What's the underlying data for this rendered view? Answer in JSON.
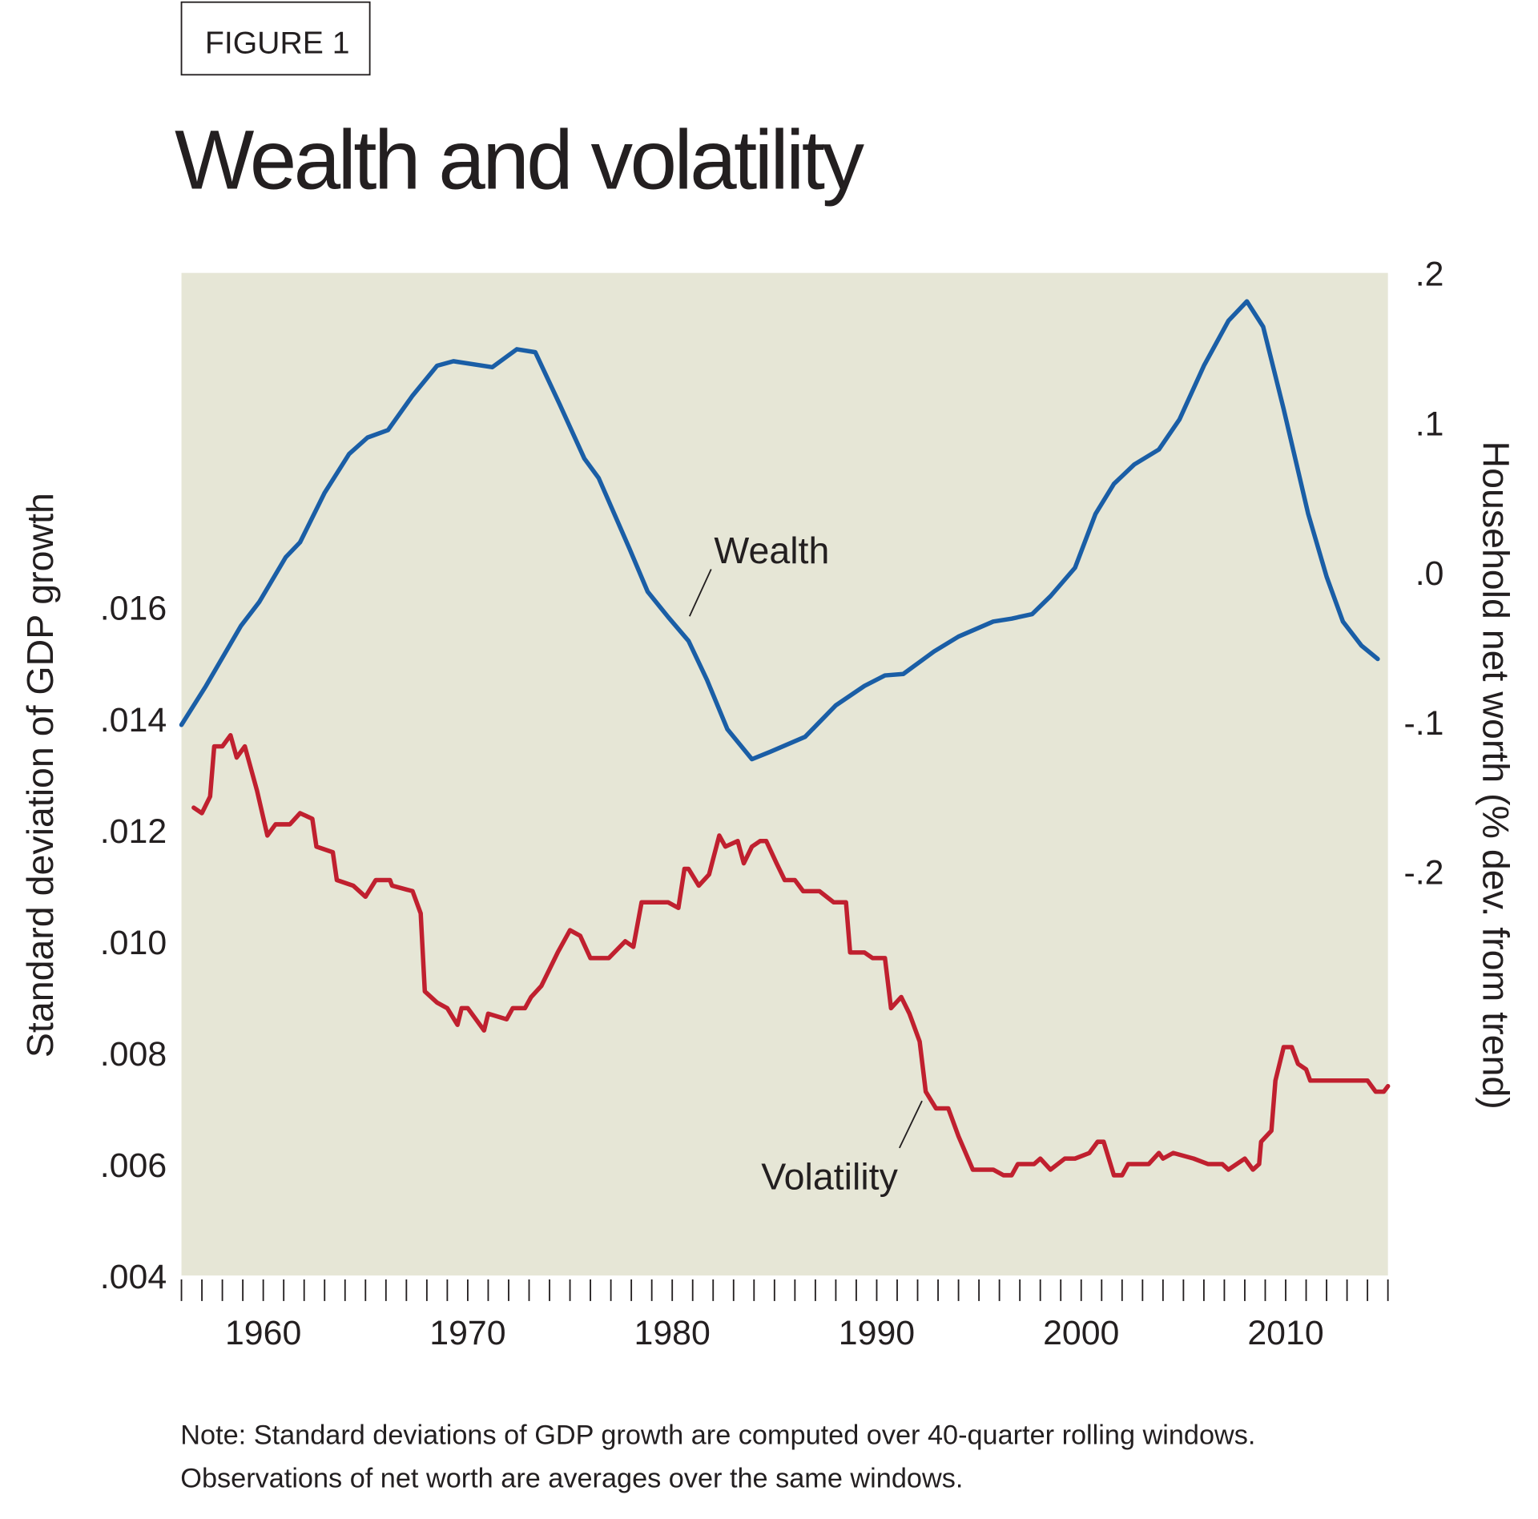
{
  "figure_label": "FIGURE 1",
  "title": "Wealth and volatility",
  "note_lines": [
    "Note: Standard deviations of GDP growth are computed over 40-quarter rolling windows.",
    "Observations of net worth are averages over the same windows."
  ],
  "chart_data": {
    "type": "line",
    "title": "Wealth and volatility",
    "background": "#e6e6d6",
    "grid": false,
    "legend": "none (inline labels)",
    "x_axis": {
      "range": [
        1956,
        2015
      ],
      "ticks": [
        1960,
        1970,
        1980,
        1990,
        2000,
        2010
      ],
      "minor_ticks": "every year"
    },
    "y_left": {
      "label": "Standard deviation of GDP growth",
      "range": [
        0.004,
        0.022
      ],
      "ticks": [
        ".004",
        ".006",
        ".008",
        ".010",
        ".012",
        ".014",
        ".016"
      ]
    },
    "y_right": {
      "label": "Household net worth (% dev. from trend)",
      "range": [
        -0.47,
        0.2
      ],
      "ticks": [
        ".2",
        ".1",
        ".0",
        "-.1",
        "-.2"
      ]
    },
    "series": [
      {
        "name": "Wealth",
        "axis": "right",
        "color": "#1a5ea6",
        "points": [
          [
            1956.0,
            -0.102
          ],
          [
            1957.2,
            -0.076
          ],
          [
            1958.9,
            -0.036
          ],
          [
            1959.8,
            -0.02
          ],
          [
            1961.1,
            0.01
          ],
          [
            1961.8,
            0.02
          ],
          [
            1963.0,
            0.053
          ],
          [
            1964.2,
            0.079
          ],
          [
            1965.1,
            0.09
          ],
          [
            1966.1,
            0.095
          ],
          [
            1967.3,
            0.118
          ],
          [
            1968.5,
            0.138
          ],
          [
            1969.3,
            0.141
          ],
          [
            1971.2,
            0.137
          ],
          [
            1972.4,
            0.149
          ],
          [
            1973.3,
            0.147
          ],
          [
            1974.5,
            0.112
          ],
          [
            1975.7,
            0.076
          ],
          [
            1976.4,
            0.063
          ],
          [
            1977.9,
            0.016
          ],
          [
            1978.8,
            -0.013
          ],
          [
            1979.8,
            -0.03
          ],
          [
            1980.8,
            -0.046
          ],
          [
            1981.7,
            -0.072
          ],
          [
            1982.7,
            -0.105
          ],
          [
            1983.9,
            -0.125
          ],
          [
            1984.8,
            -0.12
          ],
          [
            1986.5,
            -0.11
          ],
          [
            1988.0,
            -0.089
          ],
          [
            1989.4,
            -0.076
          ],
          [
            1990.4,
            -0.069
          ],
          [
            1991.3,
            -0.068
          ],
          [
            1992.8,
            -0.053
          ],
          [
            1994.0,
            -0.043
          ],
          [
            1995.7,
            -0.033
          ],
          [
            1996.6,
            -0.031
          ],
          [
            1997.6,
            -0.028
          ],
          [
            1998.5,
            -0.016
          ],
          [
            1999.7,
            0.003
          ],
          [
            2000.7,
            0.039
          ],
          [
            2001.6,
            0.059
          ],
          [
            2002.6,
            0.072
          ],
          [
            2003.8,
            0.082
          ],
          [
            2004.8,
            0.102
          ],
          [
            2006.0,
            0.138
          ],
          [
            2007.2,
            0.168
          ],
          [
            2008.1,
            0.181
          ],
          [
            2008.9,
            0.164
          ],
          [
            2009.9,
            0.109
          ],
          [
            2011.1,
            0.039
          ],
          [
            2012.0,
            -0.003
          ],
          [
            2012.8,
            -0.033
          ],
          [
            2013.7,
            -0.049
          ],
          [
            2014.5,
            -0.058
          ]
        ]
      },
      {
        "name": "Volatility",
        "axis": "left",
        "color": "#c0202f",
        "points": [
          [
            1956.6,
            0.0124
          ],
          [
            1957.0,
            0.0123
          ],
          [
            1957.4,
            0.0126
          ],
          [
            1957.6,
            0.0135
          ],
          [
            1958.0,
            0.0135
          ],
          [
            1958.4,
            0.0137
          ],
          [
            1958.7,
            0.0133
          ],
          [
            1959.1,
            0.0135
          ],
          [
            1959.7,
            0.0127
          ],
          [
            1960.2,
            0.0119
          ],
          [
            1960.6,
            0.0121
          ],
          [
            1961.3,
            0.0121
          ],
          [
            1961.8,
            0.0123
          ],
          [
            1962.4,
            0.0122
          ],
          [
            1962.6,
            0.0117
          ],
          [
            1963.4,
            0.0116
          ],
          [
            1963.6,
            0.0111
          ],
          [
            1964.4,
            0.011
          ],
          [
            1965.0,
            0.0108
          ],
          [
            1965.5,
            0.0111
          ],
          [
            1966.2,
            0.0111
          ],
          [
            1966.3,
            0.011
          ],
          [
            1967.3,
            0.0109
          ],
          [
            1967.7,
            0.0105
          ],
          [
            1967.9,
            0.0091
          ],
          [
            1968.5,
            0.0089
          ],
          [
            1969.0,
            0.0088
          ],
          [
            1969.5,
            0.0085
          ],
          [
            1969.7,
            0.0088
          ],
          [
            1970.0,
            0.0088
          ],
          [
            1970.4,
            0.0086
          ],
          [
            1970.8,
            0.0084
          ],
          [
            1971.0,
            0.0087
          ],
          [
            1971.9,
            0.0086
          ],
          [
            1972.2,
            0.0088
          ],
          [
            1972.8,
            0.0088
          ],
          [
            1973.1,
            0.009
          ],
          [
            1973.6,
            0.0092
          ],
          [
            1974.0,
            0.0095
          ],
          [
            1974.4,
            0.0098
          ],
          [
            1975.0,
            0.0102
          ],
          [
            1975.5,
            0.0101
          ],
          [
            1976.0,
            0.0097
          ],
          [
            1976.9,
            0.0097
          ],
          [
            1977.7,
            0.01
          ],
          [
            1978.1,
            0.0099
          ],
          [
            1978.5,
            0.0107
          ],
          [
            1979.3,
            0.0107
          ],
          [
            1979.8,
            0.0107
          ],
          [
            1980.3,
            0.0106
          ],
          [
            1980.6,
            0.0113
          ],
          [
            1980.8,
            0.0113
          ],
          [
            1981.3,
            0.011
          ],
          [
            1981.8,
            0.0112
          ],
          [
            1982.3,
            0.0119
          ],
          [
            1982.6,
            0.0117
          ],
          [
            1983.2,
            0.0118
          ],
          [
            1983.5,
            0.0114
          ],
          [
            1983.9,
            0.0117
          ],
          [
            1984.3,
            0.0118
          ],
          [
            1984.6,
            0.0118
          ],
          [
            1985.1,
            0.0114
          ],
          [
            1985.5,
            0.0111
          ],
          [
            1986.0,
            0.0111
          ],
          [
            1986.4,
            0.0109
          ],
          [
            1987.2,
            0.0109
          ],
          [
            1987.9,
            0.0107
          ],
          [
            1988.5,
            0.0107
          ],
          [
            1988.7,
            0.0098
          ],
          [
            1989.4,
            0.0098
          ],
          [
            1989.8,
            0.0097
          ],
          [
            1990.4,
            0.0097
          ],
          [
            1990.7,
            0.0088
          ],
          [
            1991.2,
            0.009
          ],
          [
            1991.6,
            0.0087
          ],
          [
            1992.1,
            0.0082
          ],
          [
            1992.4,
            0.0073
          ],
          [
            1992.9,
            0.007
          ],
          [
            1993.5,
            0.007
          ],
          [
            1994.0,
            0.0065
          ],
          [
            1994.7,
            0.0059
          ],
          [
            1995.7,
            0.0059
          ],
          [
            1996.2,
            0.0058
          ],
          [
            1996.6,
            0.0058
          ],
          [
            1996.9,
            0.006
          ],
          [
            1997.7,
            0.006
          ],
          [
            1998.0,
            0.0061
          ],
          [
            1998.5,
            0.0059
          ],
          [
            1999.2,
            0.0061
          ],
          [
            1999.7,
            0.0061
          ],
          [
            2000.4,
            0.0062
          ],
          [
            2000.8,
            0.0064
          ],
          [
            2001.1,
            0.0064
          ],
          [
            2001.6,
            0.0058
          ],
          [
            2002.0,
            0.0058
          ],
          [
            2002.3,
            0.006
          ],
          [
            2002.8,
            0.006
          ],
          [
            2003.3,
            0.006
          ],
          [
            2003.8,
            0.0062
          ],
          [
            2004.0,
            0.0061
          ],
          [
            2004.5,
            0.0062
          ],
          [
            2005.5,
            0.0061
          ],
          [
            2006.2,
            0.006
          ],
          [
            2006.9,
            0.006
          ],
          [
            2007.2,
            0.0059
          ],
          [
            2008.0,
            0.0061
          ],
          [
            2008.4,
            0.0059
          ],
          [
            2008.7,
            0.006
          ],
          [
            2008.8,
            0.0064
          ],
          [
            2009.3,
            0.0066
          ],
          [
            2009.5,
            0.0075
          ],
          [
            2009.9,
            0.0081
          ],
          [
            2010.3,
            0.0081
          ],
          [
            2010.6,
            0.0078
          ],
          [
            2011.0,
            0.0077
          ],
          [
            2011.2,
            0.0075
          ],
          [
            2012.1,
            0.0075
          ],
          [
            2012.6,
            0.0075
          ],
          [
            2013.1,
            0.0075
          ],
          [
            2014.0,
            0.0075
          ],
          [
            2014.4,
            0.0073
          ],
          [
            2014.8,
            0.0073
          ],
          [
            2015.0,
            0.0074
          ]
        ]
      }
    ],
    "annotations": [
      "Wealth",
      "Volatility"
    ]
  }
}
